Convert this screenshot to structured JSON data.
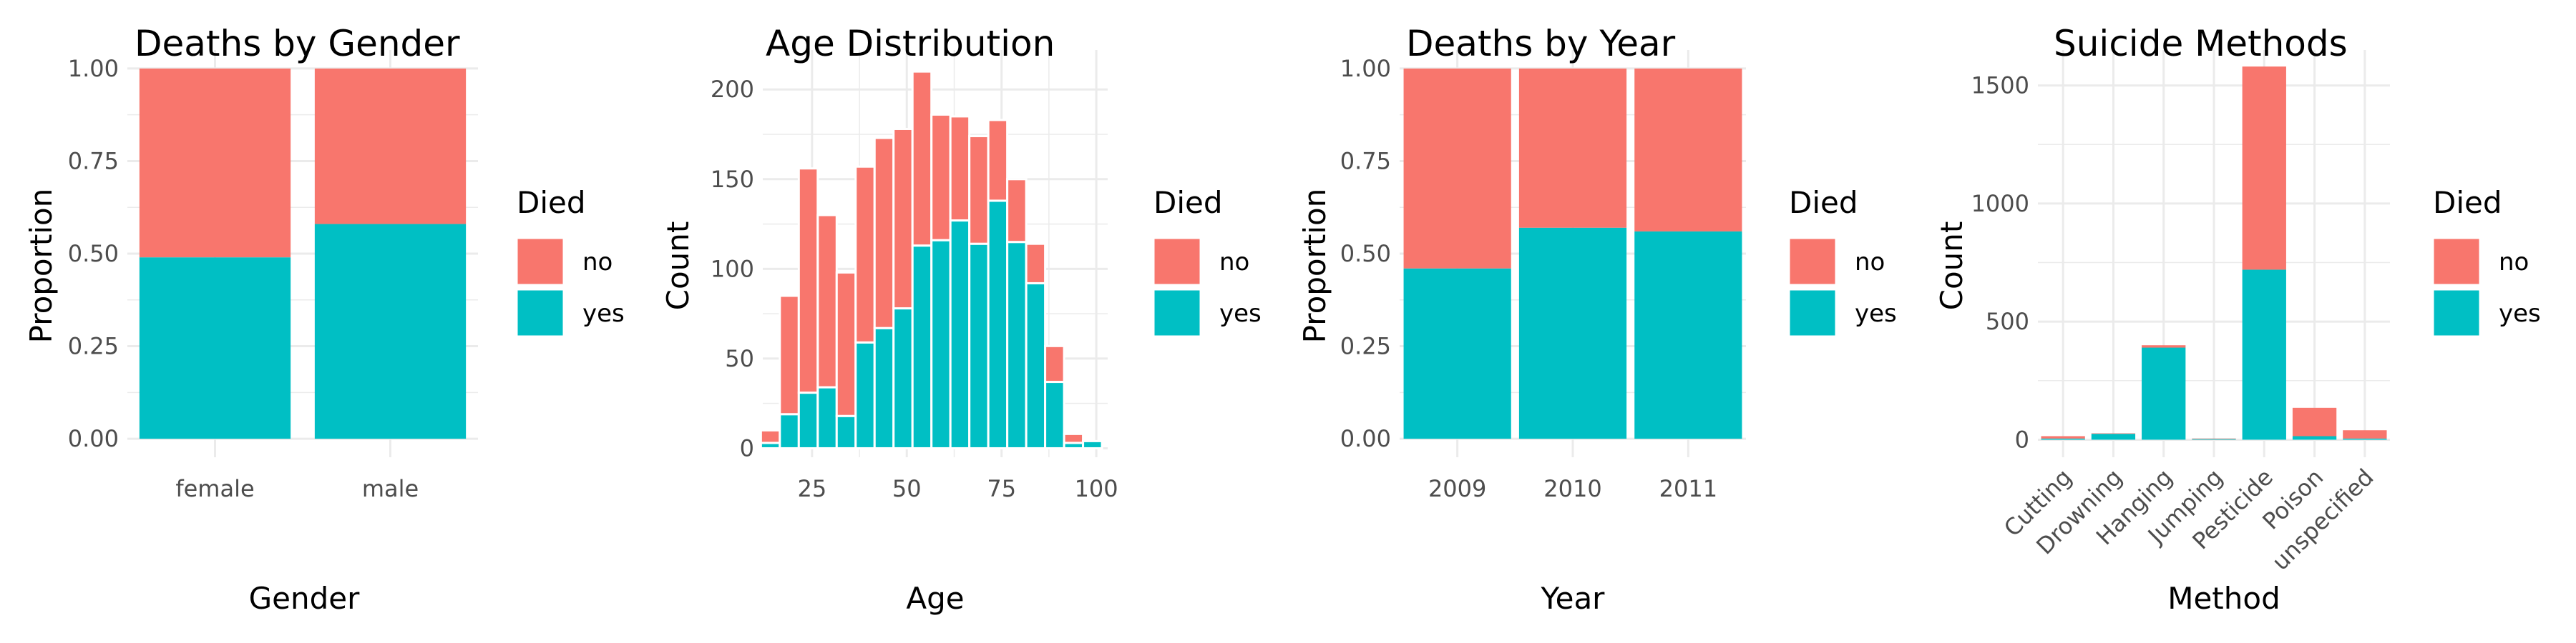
{
  "colors": {
    "no": "#F8766D",
    "yes": "#00BFC4",
    "grid": "#EBEBEB",
    "tick_text": "#4D4D4D"
  },
  "chart_data": [
    {
      "type": "bar",
      "stacked": true,
      "title": "Deaths by Gender",
      "xlabel": "Gender",
      "ylabel": "Proportion",
      "categories": [
        "female",
        "male"
      ],
      "series": [
        {
          "name": "no",
          "values": [
            0.51,
            0.42
          ]
        },
        {
          "name": "yes",
          "values": [
            0.49,
            0.58
          ]
        }
      ],
      "ylim": [
        0,
        1
      ],
      "yticks": [
        "0.00",
        "0.25",
        "0.50",
        "0.75",
        "1.00"
      ],
      "legend": {
        "title": "Died",
        "entries": [
          "no",
          "yes"
        ],
        "position": "right"
      },
      "grid": true
    },
    {
      "type": "bar",
      "stacked": true,
      "histogram": true,
      "title": "Age Distribution",
      "xlabel": "Age",
      "ylabel": "Count",
      "x": [
        14,
        19,
        24,
        29,
        34,
        39,
        44,
        49,
        54,
        59,
        64,
        69,
        74,
        79,
        84,
        89,
        94,
        99
      ],
      "series": [
        {
          "name": "no",
          "values": [
            7,
            66,
            125,
            96,
            80,
            98,
            106,
            100,
            97,
            70,
            58,
            60,
            45,
            35,
            22,
            20,
            5,
            0
          ]
        },
        {
          "name": "yes",
          "values": [
            3,
            19,
            31,
            34,
            18,
            59,
            67,
            78,
            113,
            116,
            127,
            114,
            138,
            115,
            92,
            37,
            3,
            4
          ]
        }
      ],
      "xlim": [
        12,
        103
      ],
      "ylim": [
        -5,
        222
      ],
      "xticks": [
        25,
        50,
        75,
        100
      ],
      "yticks": [
        0,
        50,
        100,
        150,
        200
      ],
      "legend": {
        "title": "Died",
        "entries": [
          "no",
          "yes"
        ],
        "position": "right"
      },
      "grid": true
    },
    {
      "type": "bar",
      "stacked": true,
      "title": "Deaths by Year",
      "xlabel": "Year",
      "ylabel": "Proportion",
      "categories": [
        "2009",
        "2010",
        "2011"
      ],
      "series": [
        {
          "name": "no",
          "values": [
            0.54,
            0.43,
            0.44
          ]
        },
        {
          "name": "yes",
          "values": [
            0.46,
            0.57,
            0.56
          ]
        }
      ],
      "ylim": [
        0,
        1
      ],
      "yticks": [
        "0.00",
        "0.25",
        "0.50",
        "0.75",
        "1.00"
      ],
      "legend": {
        "title": "Died",
        "entries": [
          "no",
          "yes"
        ],
        "position": "right"
      },
      "grid": true
    },
    {
      "type": "bar",
      "stacked": true,
      "title": "Suicide Methods",
      "xlabel": "Method",
      "ylabel": "Count",
      "categories": [
        "Cutting",
        "Drowning",
        "Hanging",
        "Jumping",
        "Pesticide",
        "Poison",
        "unspecified"
      ],
      "series": [
        {
          "name": "no",
          "values": [
            10,
            2,
            10,
            2,
            860,
            120,
            35
          ]
        },
        {
          "name": "yes",
          "values": [
            5,
            25,
            390,
            3,
            720,
            15,
            5
          ]
        }
      ],
      "ylim": [
        0,
        1650
      ],
      "yticks": [
        0,
        500,
        1000,
        1500
      ],
      "legend": {
        "title": "Died",
        "entries": [
          "no",
          "yes"
        ],
        "position": "right"
      },
      "grid": true
    }
  ]
}
